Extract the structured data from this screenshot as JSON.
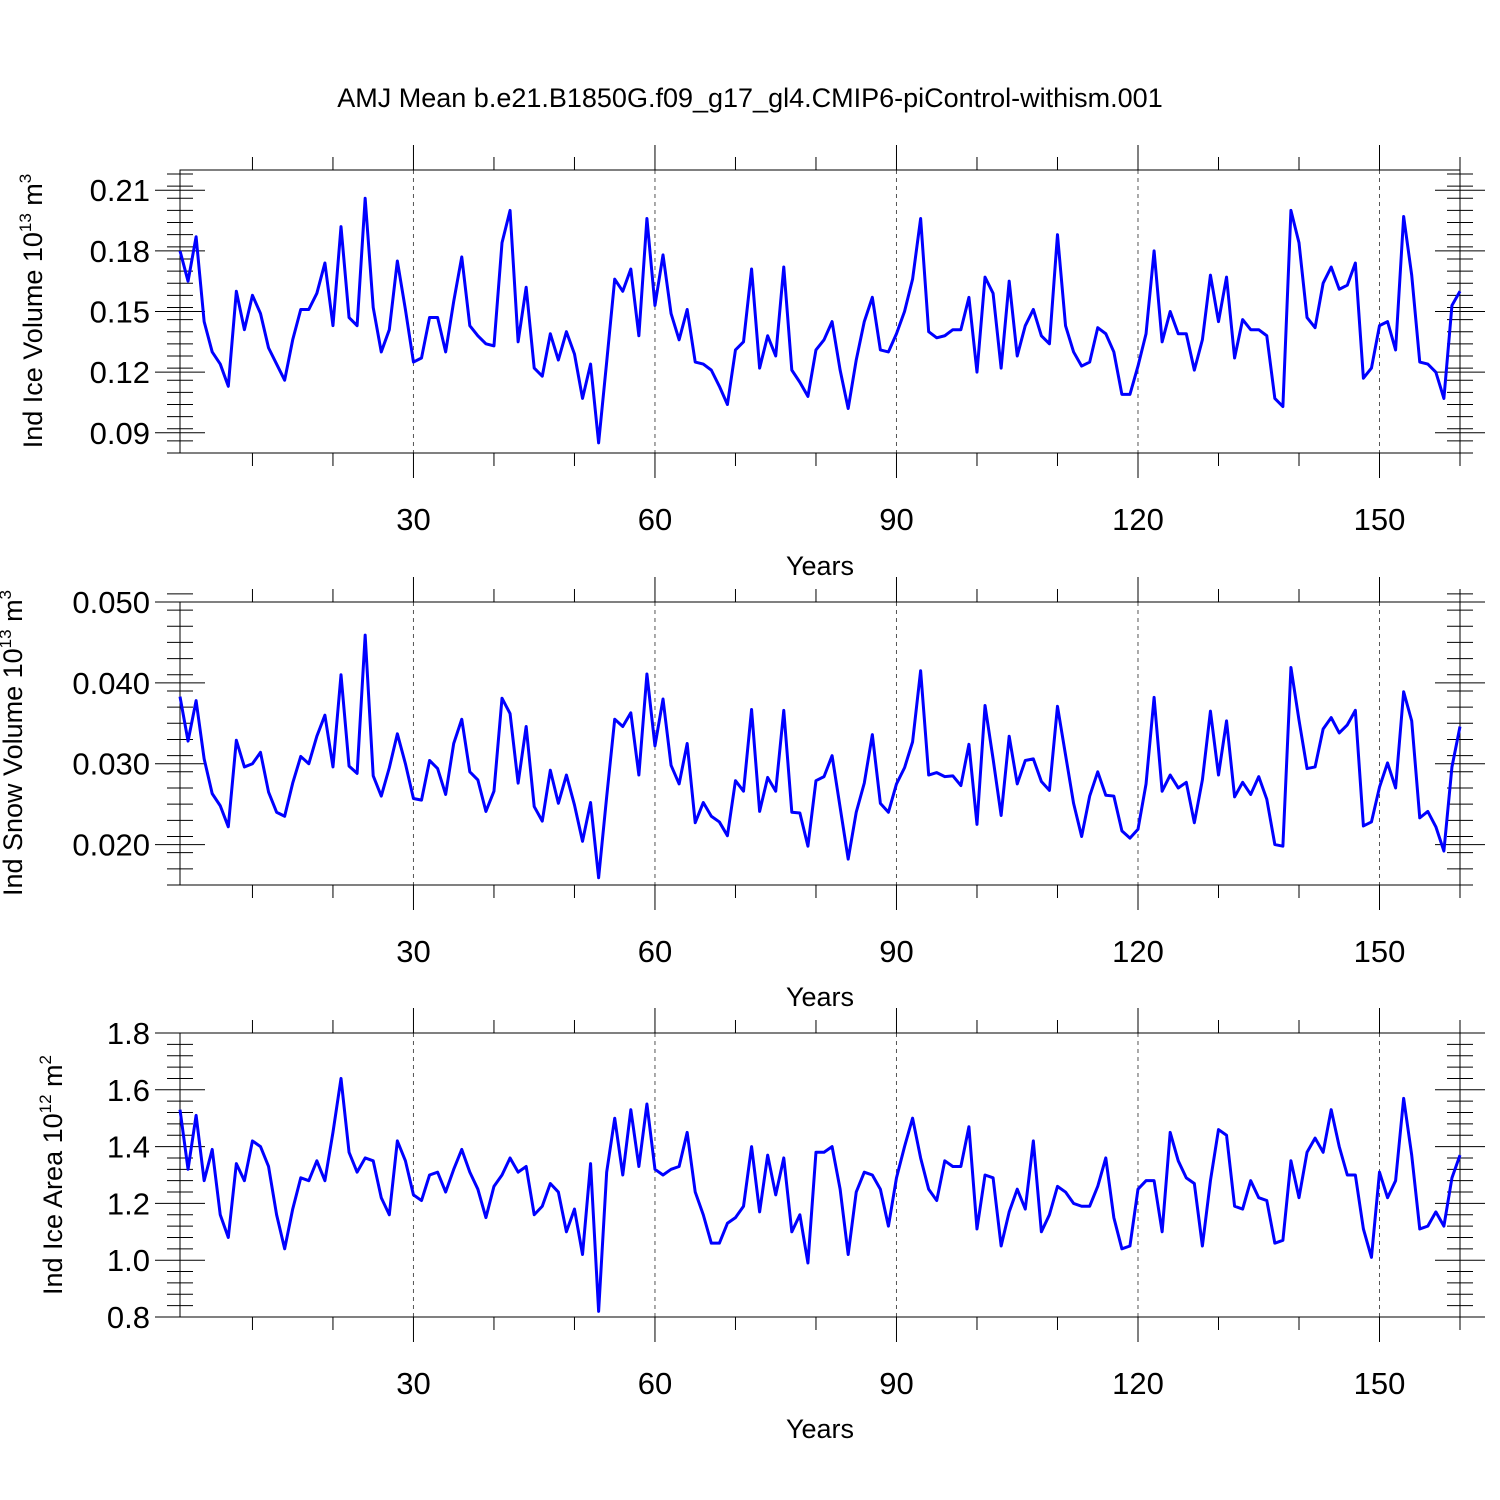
{
  "title": "AMJ Mean b.e21.B1850G.f09_g17_gl4.CMIP6-piControl-withism.001",
  "chart_data": [
    {
      "type": "line",
      "title": "AMJ Mean b.e21.B1850G.f09_g17_gl4.CMIP6-piControl-withism.001",
      "xlabel": "Years",
      "ylabel": {
        "base": "Ind Ice Volume 10",
        "exp": "13",
        "unit": " m",
        "unit_exp": "3"
      },
      "xlim": [
        1,
        160
      ],
      "ylim": [
        0.08,
        0.22
      ],
      "xticks": [
        30,
        60,
        90,
        120,
        150
      ],
      "xtick_labels": [
        "30",
        "60",
        "90",
        "120",
        "150"
      ],
      "yticks": [
        0.09,
        0.12,
        0.15,
        0.18,
        0.21
      ],
      "ytick_labels": [
        "0.09",
        "0.12",
        "0.15",
        "0.18",
        "0.21"
      ],
      "line_color": "#0000ff",
      "series": [
        {
          "name": "Ind Ice Volume",
          "x_start": 1,
          "values": [
            0.18,
            0.165,
            0.187,
            0.145,
            0.13,
            0.124,
            0.113,
            0.16,
            0.141,
            0.158,
            0.149,
            0.132,
            0.124,
            0.116,
            0.136,
            0.151,
            0.151,
            0.159,
            0.174,
            0.143,
            0.192,
            0.147,
            0.143,
            0.206,
            0.152,
            0.13,
            0.141,
            0.175,
            0.151,
            0.125,
            0.127,
            0.147,
            0.147,
            0.13,
            0.155,
            0.177,
            0.143,
            0.138,
            0.134,
            0.133,
            0.184,
            0.2,
            0.135,
            0.162,
            0.122,
            0.118,
            0.139,
            0.126,
            0.14,
            0.129,
            0.107,
            0.124,
            0.085,
            0.125,
            0.166,
            0.16,
            0.171,
            0.138,
            0.196,
            0.153,
            0.178,
            0.149,
            0.136,
            0.151,
            0.125,
            0.124,
            0.121,
            0.113,
            0.104,
            0.131,
            0.135,
            0.171,
            0.122,
            0.138,
            0.128,
            0.172,
            0.121,
            0.115,
            0.108,
            0.131,
            0.136,
            0.145,
            0.121,
            0.102,
            0.126,
            0.145,
            0.157,
            0.131,
            0.13,
            0.139,
            0.15,
            0.166,
            0.196,
            0.14,
            0.137,
            0.138,
            0.141,
            0.141,
            0.157,
            0.12,
            0.167,
            0.159,
            0.122,
            0.165,
            0.128,
            0.143,
            0.151,
            0.138,
            0.134,
            0.188,
            0.143,
            0.13,
            0.123,
            0.125,
            0.142,
            0.139,
            0.13,
            0.109,
            0.109,
            0.123,
            0.139,
            0.18,
            0.135,
            0.15,
            0.139,
            0.139,
            0.121,
            0.136,
            0.168,
            0.145,
            0.167,
            0.127,
            0.146,
            0.141,
            0.141,
            0.138,
            0.107,
            0.103,
            0.2,
            0.184,
            0.147,
            0.142,
            0.164,
            0.172,
            0.161,
            0.163,
            0.174,
            0.117,
            0.122,
            0.143,
            0.145,
            0.131,
            0.197,
            0.168,
            0.125,
            0.124,
            0.12,
            0.107,
            0.153,
            0.16
          ]
        }
      ]
    },
    {
      "type": "line",
      "xlabel": "Years",
      "ylabel": {
        "base": "Ind Snow Volume 10",
        "exp": "13",
        "unit": " m",
        "unit_exp": "3"
      },
      "xlim": [
        1,
        160
      ],
      "ylim": [
        0.015,
        0.05
      ],
      "xticks": [
        30,
        60,
        90,
        120,
        150
      ],
      "xtick_labels": [
        "30",
        "60",
        "90",
        "120",
        "150"
      ],
      "yticks": [
        0.02,
        0.03,
        0.04,
        0.05
      ],
      "ytick_labels": [
        "0.020",
        "0.030",
        "0.040",
        "0.050"
      ],
      "line_color": "#0000ff",
      "series": [
        {
          "name": "Ind Snow Volume",
          "x_start": 1,
          "values": [
            0.0383,
            0.0328,
            0.0378,
            0.0306,
            0.0263,
            0.0248,
            0.0222,
            0.0329,
            0.0296,
            0.03,
            0.0314,
            0.0265,
            0.024,
            0.0235,
            0.0276,
            0.0309,
            0.03,
            0.0334,
            0.036,
            0.0296,
            0.041,
            0.0297,
            0.0288,
            0.0459,
            0.0285,
            0.026,
            0.0295,
            0.0337,
            0.03,
            0.0257,
            0.0255,
            0.0304,
            0.0294,
            0.0262,
            0.0325,
            0.0355,
            0.029,
            0.028,
            0.0241,
            0.0266,
            0.0381,
            0.0362,
            0.0276,
            0.0346,
            0.0247,
            0.0229,
            0.0292,
            0.0251,
            0.0286,
            0.0249,
            0.0204,
            0.0252,
            0.0159,
            0.0259,
            0.0355,
            0.0346,
            0.0363,
            0.0286,
            0.0411,
            0.0322,
            0.038,
            0.0298,
            0.0275,
            0.0325,
            0.0227,
            0.0252,
            0.0235,
            0.0228,
            0.0211,
            0.0279,
            0.0266,
            0.0367,
            0.0241,
            0.0283,
            0.0266,
            0.0366,
            0.024,
            0.0239,
            0.0198,
            0.0279,
            0.0284,
            0.031,
            0.0246,
            0.0182,
            0.024,
            0.0276,
            0.0336,
            0.0251,
            0.024,
            0.0275,
            0.0295,
            0.0327,
            0.0415,
            0.0286,
            0.0289,
            0.0284,
            0.0285,
            0.0273,
            0.0324,
            0.0225,
            0.0372,
            0.0306,
            0.0236,
            0.0334,
            0.0275,
            0.0304,
            0.0306,
            0.0278,
            0.0267,
            0.0371,
            0.0311,
            0.0251,
            0.021,
            0.026,
            0.029,
            0.0261,
            0.026,
            0.0217,
            0.0208,
            0.0219,
            0.0275,
            0.0382,
            0.0266,
            0.0286,
            0.027,
            0.0277,
            0.0227,
            0.028,
            0.0365,
            0.0286,
            0.0353,
            0.0259,
            0.0277,
            0.0262,
            0.0284,
            0.0256,
            0.02,
            0.0198,
            0.0419,
            0.0354,
            0.0294,
            0.0296,
            0.0343,
            0.0357,
            0.0338,
            0.0348,
            0.0366,
            0.0223,
            0.0228,
            0.0271,
            0.0301,
            0.027,
            0.0389,
            0.0353,
            0.0233,
            0.0241,
            0.0222,
            0.0192,
            0.0296,
            0.0346
          ]
        }
      ]
    },
    {
      "type": "line",
      "xlabel": "Years",
      "ylabel": {
        "base": "Ind Ice Area 10",
        "exp": "12",
        "unit": " m",
        "unit_exp": "2"
      },
      "xlim": [
        1,
        160
      ],
      "ylim": [
        0.8,
        1.8
      ],
      "xticks": [
        30,
        60,
        90,
        120,
        150
      ],
      "xtick_labels": [
        "30",
        "60",
        "90",
        "120",
        "150"
      ],
      "yticks": [
        0.8,
        1.0,
        1.2,
        1.4,
        1.6,
        1.8
      ],
      "ytick_labels": [
        "0.8",
        "1.0",
        "1.2",
        "1.4",
        "1.6",
        "1.8"
      ],
      "line_color": "#0000ff",
      "series": [
        {
          "name": "Ind Ice Area",
          "x_start": 1,
          "values": [
            1.53,
            1.32,
            1.51,
            1.28,
            1.39,
            1.16,
            1.08,
            1.34,
            1.28,
            1.42,
            1.4,
            1.33,
            1.16,
            1.04,
            1.18,
            1.29,
            1.28,
            1.35,
            1.28,
            1.45,
            1.64,
            1.38,
            1.31,
            1.36,
            1.35,
            1.22,
            1.16,
            1.42,
            1.35,
            1.23,
            1.21,
            1.3,
            1.31,
            1.24,
            1.32,
            1.39,
            1.31,
            1.25,
            1.15,
            1.26,
            1.3,
            1.36,
            1.31,
            1.33,
            1.16,
            1.19,
            1.27,
            1.24,
            1.1,
            1.18,
            1.02,
            1.34,
            0.82,
            1.31,
            1.5,
            1.3,
            1.53,
            1.33,
            1.55,
            1.32,
            1.3,
            1.32,
            1.33,
            1.45,
            1.24,
            1.16,
            1.06,
            1.06,
            1.13,
            1.15,
            1.19,
            1.4,
            1.17,
            1.37,
            1.23,
            1.36,
            1.1,
            1.16,
            0.99,
            1.38,
            1.38,
            1.4,
            1.25,
            1.02,
            1.24,
            1.31,
            1.3,
            1.25,
            1.12,
            1.29,
            1.4,
            1.5,
            1.36,
            1.25,
            1.21,
            1.35,
            1.33,
            1.33,
            1.47,
            1.11,
            1.3,
            1.29,
            1.05,
            1.17,
            1.25,
            1.18,
            1.42,
            1.1,
            1.16,
            1.26,
            1.24,
            1.2,
            1.19,
            1.19,
            1.26,
            1.36,
            1.15,
            1.04,
            1.05,
            1.25,
            1.28,
            1.28,
            1.1,
            1.45,
            1.35,
            1.29,
            1.27,
            1.05,
            1.28,
            1.46,
            1.44,
            1.19,
            1.18,
            1.28,
            1.22,
            1.21,
            1.06,
            1.07,
            1.35,
            1.22,
            1.38,
            1.43,
            1.38,
            1.53,
            1.4,
            1.3,
            1.3,
            1.11,
            1.01,
            1.31,
            1.22,
            1.28,
            1.57,
            1.37,
            1.11,
            1.12,
            1.17,
            1.12,
            1.29,
            1.37
          ]
        }
      ]
    }
  ]
}
